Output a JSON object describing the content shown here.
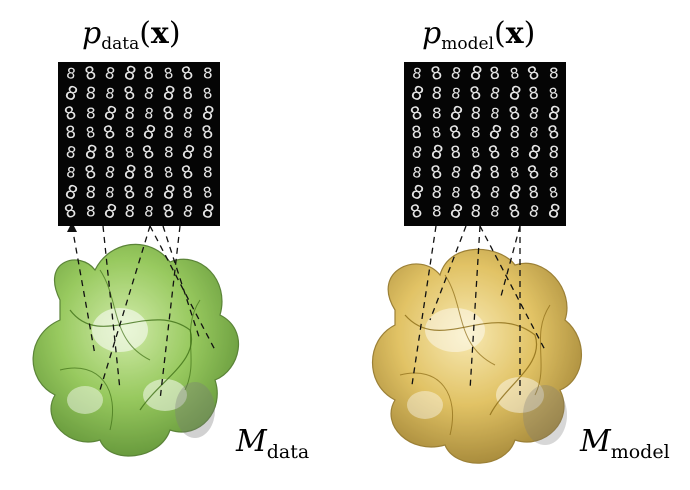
{
  "left": {
    "title_base": "p",
    "title_sub": "data",
    "title_arg_open": "(",
    "title_arg": "x",
    "title_arg_close": ")",
    "manifold_symbol": "M",
    "manifold_sub": "data",
    "color": "#7fbf3a",
    "digit": "8"
  },
  "right": {
    "title_base": "p",
    "title_sub": "model",
    "title_arg_open": "(",
    "title_arg": "x",
    "title_arg_close": ")",
    "manifold_symbol": "M",
    "manifold_sub": "model",
    "color": "#d9b545",
    "digit": "8"
  }
}
